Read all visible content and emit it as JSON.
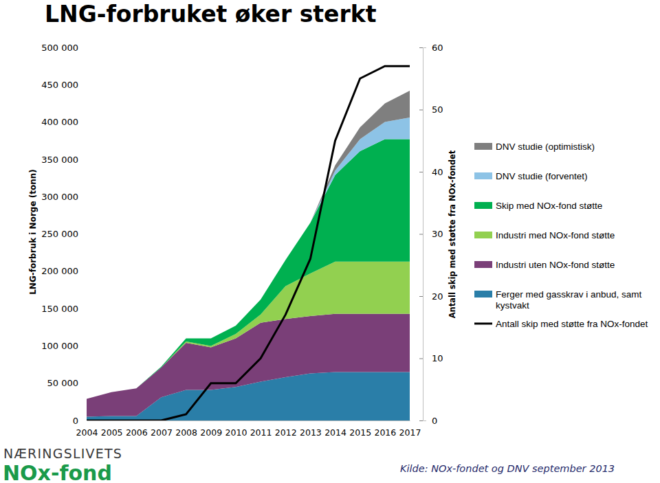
{
  "chart_data": {
    "type": "area",
    "stacked": true,
    "title": "LNG-forbruket øker sterkt",
    "y_label": "LNG-forbruk i Norge (tonn)",
    "y2_label": "Antall skip med støtte fra NOx-fondet",
    "annotations": [
      "NÆRINGSLIVETS",
      "NOx-fond",
      "Kilde: NOx-fondet og DNV september 2013"
    ],
    "x": [
      2004,
      2005,
      2006,
      2007,
      2008,
      2009,
      2010,
      2011,
      2012,
      2013,
      2014,
      2015,
      2016,
      2017
    ],
    "xlim": [
      2004,
      2017
    ],
    "xticks": [
      2004,
      2005,
      2006,
      2007,
      2008,
      2009,
      2010,
      2011,
      2012,
      2013,
      2014,
      2015,
      2016,
      2017
    ],
    "ylim": [
      0,
      500000
    ],
    "yticks": [
      0,
      {
        "value": 50000,
        "label": "50 000"
      },
      {
        "value": 100000,
        "label": "100 000"
      },
      {
        "value": 150000,
        "label": "150 000"
      },
      {
        "value": 200000,
        "label": "200 000"
      },
      {
        "value": 250000,
        "label": "250 000"
      },
      {
        "value": 300000,
        "label": "300 000"
      },
      {
        "value": 350000,
        "label": "350 000"
      },
      {
        "value": 400000,
        "label": "400 000"
      },
      {
        "value": 450000,
        "label": "450 000"
      },
      {
        "value": 500000,
        "label": "500 000"
      }
    ],
    "y2lim": [
      0,
      60
    ],
    "y2ticks": [
      0,
      10,
      20,
      30,
      40,
      50,
      60
    ],
    "grid": false,
    "legend": "right",
    "series": [
      {
        "name": "Ferger med gasskrav i anbud, samt kystvakt",
        "color": "#2a7ea8",
        "values": [
          5000,
          6000,
          6000,
          31000,
          41000,
          41000,
          45000,
          52000,
          58000,
          63000,
          65000,
          65000,
          65000,
          65000
        ]
      },
      {
        "name": "Industri uten NOx-fond støtte",
        "color": "#7a3f78",
        "values": [
          24000,
          32000,
          37000,
          40000,
          63000,
          57000,
          65000,
          79000,
          78000,
          77000,
          78000,
          78000,
          78000,
          78000
        ]
      },
      {
        "name": "Industri med NOx-fond støtte",
        "color": "#92d050",
        "values": [
          0,
          0,
          0,
          0,
          2000,
          2000,
          6000,
          11000,
          44000,
          57000,
          70000,
          70000,
          70000,
          70000
        ]
      },
      {
        "name": "Skip med NOx-fond støtte",
        "color": "#00b050",
        "values": [
          0,
          0,
          0,
          1000,
          4000,
          10000,
          11000,
          20000,
          35000,
          68000,
          116000,
          148000,
          164000,
          164000
        ]
      },
      {
        "name": "DNV studie (forventet)",
        "color": "#8dc3e6",
        "values": [
          0,
          0,
          0,
          0,
          0,
          0,
          0,
          0,
          0,
          0,
          6000,
          16000,
          23000,
          29000
        ]
      },
      {
        "name": "DNV studie (optimistisk)",
        "color": "#7f7f7f",
        "values": [
          0,
          0,
          0,
          0,
          0,
          0,
          0,
          0,
          0,
          0,
          7000,
          16000,
          25000,
          36000
        ]
      },
      {
        "name": "Antall skip med støtte fra NOx-fondet",
        "color": "#000000",
        "type": "line",
        "axis": "y2",
        "values": [
          0,
          0,
          0,
          0,
          1,
          6,
          6,
          10,
          17,
          26,
          45,
          55,
          57,
          57
        ]
      }
    ]
  }
}
